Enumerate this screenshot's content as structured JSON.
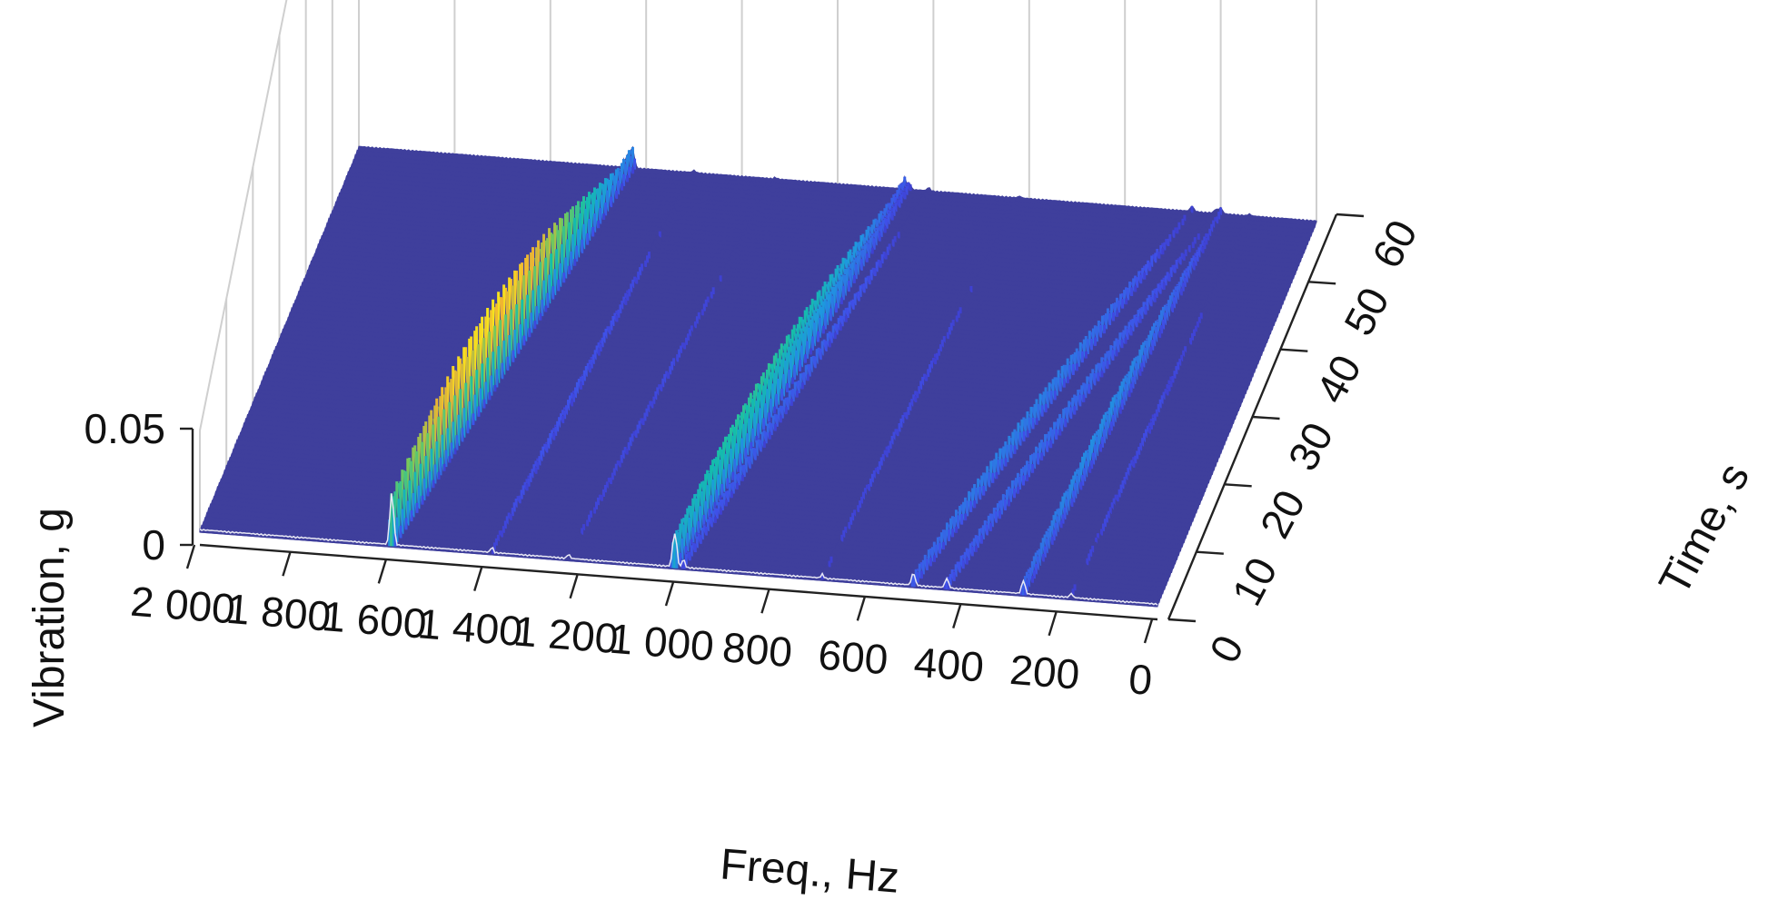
{
  "chart_data": {
    "type": "3d-waterfall",
    "x_axis": {
      "label": "Freq., Hz",
      "range": [
        0,
        2000
      ],
      "ticks": [
        2000,
        1800,
        1600,
        1400,
        1200,
        1000,
        800,
        600,
        400,
        200,
        0
      ],
      "tick_labels": [
        "2 000",
        "1 800",
        "1 600",
        "1 400",
        "1 200",
        "1 000",
        "800",
        "600",
        "400",
        "200",
        "0"
      ]
    },
    "y_axis": {
      "label": "Time, s",
      "range": [
        0,
        60
      ],
      "ticks": [
        0,
        10,
        20,
        30,
        40,
        50,
        60
      ],
      "tick_labels": [
        "0",
        "10",
        "20",
        "30",
        "40",
        "50",
        "60"
      ]
    },
    "z_axis": {
      "label": "Vibration, g",
      "range": [
        0,
        0.05
      ],
      "ticks": [
        0,
        0.05
      ],
      "tick_labels": [
        "0",
        "0.05"
      ]
    },
    "grid": true,
    "colormap": "parula",
    "baseline_level": 0.001,
    "ridges": [
      {
        "freq_at_t0": 1600,
        "freq_at_t60": 1430,
        "peak": 0.035,
        "width": 5
      },
      {
        "freq_at_t0": 1595,
        "freq_at_t60": 1425,
        "peak": 0.009,
        "width": 4
      },
      {
        "freq_at_t0": 1010,
        "freq_at_t60": 860,
        "peak": 0.02,
        "width": 5
      },
      {
        "freq_at_t0": 1005,
        "freq_at_t60": 850,
        "peak": 0.012,
        "width": 4
      },
      {
        "freq_at_t0": 990,
        "freq_at_t60": 810,
        "peak": 0.006,
        "width": 4
      },
      {
        "freq_at_t0": 510,
        "freq_at_t60": 260,
        "peak": 0.009,
        "width": 5
      },
      {
        "freq_at_t0": 440,
        "freq_at_t60": 210,
        "peak": 0.007,
        "width": 5
      },
      {
        "freq_at_t0": 280,
        "freq_at_t60": 200,
        "peak": 0.01,
        "width": 5
      },
      {
        "freq_at_t0": 1390,
        "freq_at_t60": 1300,
        "peak": 0.004,
        "width": 4
      },
      {
        "freq_at_t0": 1230,
        "freq_at_t60": 1130,
        "peak": 0.003,
        "width": 4
      },
      {
        "freq_at_t0": 700,
        "freq_at_t60": 620,
        "peak": 0.003,
        "width": 4
      },
      {
        "freq_at_t0": 180,
        "freq_at_t60": 140,
        "peak": 0.003,
        "width": 4
      }
    ]
  }
}
